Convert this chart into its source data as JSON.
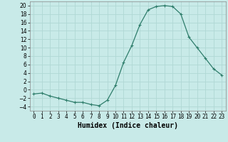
{
  "title": "",
  "xlabel": "Humidex (Indice chaleur)",
  "ylabel": "",
  "x": [
    0,
    1,
    2,
    3,
    4,
    5,
    6,
    7,
    8,
    9,
    10,
    11,
    12,
    13,
    14,
    15,
    16,
    17,
    18,
    19,
    20,
    21,
    22,
    23
  ],
  "y": [
    -1,
    -0.8,
    -1.5,
    -2,
    -2.5,
    -3,
    -3,
    -3.5,
    -3.8,
    -2.5,
    1,
    6.5,
    10.5,
    15.5,
    19,
    19.8,
    20,
    19.8,
    18,
    12.5,
    10,
    7.5,
    5,
    3.5
  ],
  "line_color": "#2e7d6b",
  "marker": "+",
  "marker_size": 3,
  "marker_lw": 0.8,
  "line_width": 0.9,
  "bg_color": "#c8eae8",
  "grid_color": "#b0d8d4",
  "xlim": [
    -0.5,
    23.5
  ],
  "ylim": [
    -5,
    21
  ],
  "yticks": [
    -4,
    -2,
    0,
    2,
    4,
    6,
    8,
    10,
    12,
    14,
    16,
    18,
    20
  ],
  "xtick_labels": [
    "0",
    "1",
    "2",
    "3",
    "4",
    "5",
    "6",
    "7",
    "8",
    "9",
    "10",
    "11",
    "12",
    "13",
    "14",
    "15",
    "16",
    "17",
    "18",
    "19",
    "20",
    "21",
    "22",
    "23"
  ],
  "xticks": [
    0,
    1,
    2,
    3,
    4,
    5,
    6,
    7,
    8,
    9,
    10,
    11,
    12,
    13,
    14,
    15,
    16,
    17,
    18,
    19,
    20,
    21,
    22,
    23
  ],
  "tick_labelsize": 5.5,
  "xlabel_fontsize": 7,
  "spine_color": "#888888"
}
